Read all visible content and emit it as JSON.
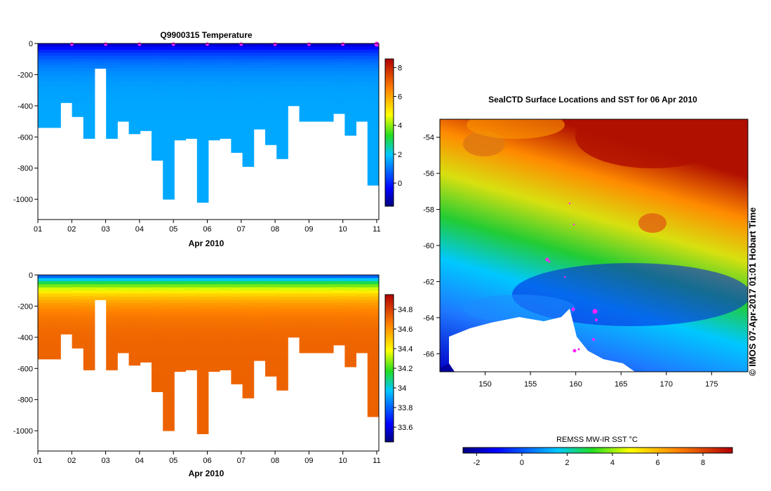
{
  "chart_data": [
    {
      "type": "heatmap",
      "title": "Q9900315  Temperature",
      "xlabel": "Apr 2010",
      "x_ticks": [
        "01",
        "02",
        "03",
        "04",
        "05",
        "06",
        "07",
        "08",
        "09",
        "10",
        "11"
      ],
      "y_ticks": [
        0,
        -200,
        -400,
        -600,
        -800,
        -1000
      ],
      "ylim": [
        -1130,
        0
      ],
      "colorbar_ticks": [
        "8",
        "6",
        "4",
        "2",
        "0"
      ],
      "colorbar_range": [
        -1.6,
        8.6
      ],
      "profile_max_depth": [
        540,
        540,
        380,
        470,
        610,
        160,
        610,
        500,
        580,
        560,
        750,
        1000,
        620,
        610,
        1020,
        620,
        610,
        700,
        790,
        550,
        650,
        740,
        400,
        500,
        500,
        500,
        450,
        590,
        500,
        910
      ],
      "surface_value": -1,
      "deep_value": 1.6,
      "profile_markers": 10
    },
    {
      "type": "heatmap",
      "title": "",
      "xlabel": "Apr 2010",
      "x_ticks": [
        "01",
        "02",
        "03",
        "04",
        "05",
        "06",
        "07",
        "08",
        "09",
        "10",
        "11"
      ],
      "y_ticks": [
        0,
        -200,
        -400,
        -600,
        -800,
        -1000
      ],
      "ylim": [
        -1130,
        0
      ],
      "colorbar_ticks": [
        "34.8",
        "34.6",
        "34.4",
        "34.2",
        "34",
        "33.8",
        "33.6"
      ],
      "colorbar_range": [
        33.45,
        34.95
      ],
      "profile_max_depth": [
        540,
        540,
        380,
        470,
        610,
        160,
        610,
        500,
        580,
        560,
        750,
        1000,
        620,
        610,
        1020,
        620,
        610,
        700,
        790,
        550,
        650,
        740,
        400,
        500,
        500,
        500,
        450,
        590,
        500,
        910
      ],
      "surface_value": 33.7,
      "deep_value": 34.72
    },
    {
      "type": "heatmap",
      "title": "SealCTD Surface Locations and SST for 06 Apr 2010",
      "x_ticks": [
        "150",
        "155",
        "160",
        "165",
        "170",
        "175"
      ],
      "y_ticks": [
        "-54",
        "-56",
        "-58",
        "-60",
        "-62",
        "-64",
        "-66"
      ],
      "xlim": [
        145,
        179
      ],
      "ylim": [
        -67,
        -53
      ],
      "colorbar_label": "REMSS MW-IR SST °C",
      "colorbar_ticks": [
        "-2",
        "0",
        "2",
        "4",
        "6",
        "8"
      ],
      "colorbar_range": [
        -2.6,
        9.3
      ]
    }
  ],
  "credit": "© IMOS 07-Apr-2017 01:01 Hobart Time"
}
